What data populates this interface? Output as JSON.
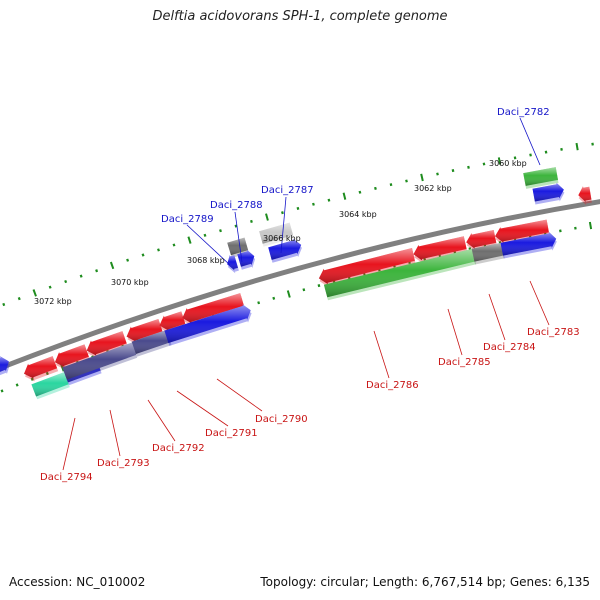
{
  "title": "Delftia acidovorans SPH-1, complete genome",
  "accession": "Accession: NC_010002",
  "topology": "Topology: circular; Length: 6,767,514 bp; Genes: 6,135",
  "colors": {
    "red": "#e8141e",
    "blue": "#1a1ae0",
    "green": "#3cb43c",
    "gray": "#6e6e6e",
    "lightgray": "#c8c8c8",
    "slate": "#4a4a8c",
    "teal": "#2ad6a0",
    "orange": "#f0a020",
    "ticks": "#1e8c1e",
    "top_label": "#1414c8",
    "bottom_label": "#c81414",
    "backbone": "#808080"
  },
  "scale": [
    {
      "label": "3072 kbp"
    },
    {
      "label": "3070 kbp"
    },
    {
      "label": "3068 kbp"
    },
    {
      "label": "3066 kbp"
    },
    {
      "label": "3064 kbp"
    },
    {
      "label": "3062 kbp"
    },
    {
      "label": "3060 kbp"
    }
  ],
  "top_genes": [
    {
      "label": "Daci_2789"
    },
    {
      "label": "Daci_2788"
    },
    {
      "label": "Daci_2787"
    },
    {
      "label": "Daci_2782"
    }
  ],
  "bottom_genes": [
    {
      "label": "Daci_2794"
    },
    {
      "label": "Daci_2793"
    },
    {
      "label": "Daci_2792"
    },
    {
      "label": "Daci_2791"
    },
    {
      "label": "Daci_2790"
    },
    {
      "label": "Daci_2786"
    },
    {
      "label": "Daci_2785"
    },
    {
      "label": "Daci_2784"
    },
    {
      "label": "Daci_2783"
    }
  ]
}
